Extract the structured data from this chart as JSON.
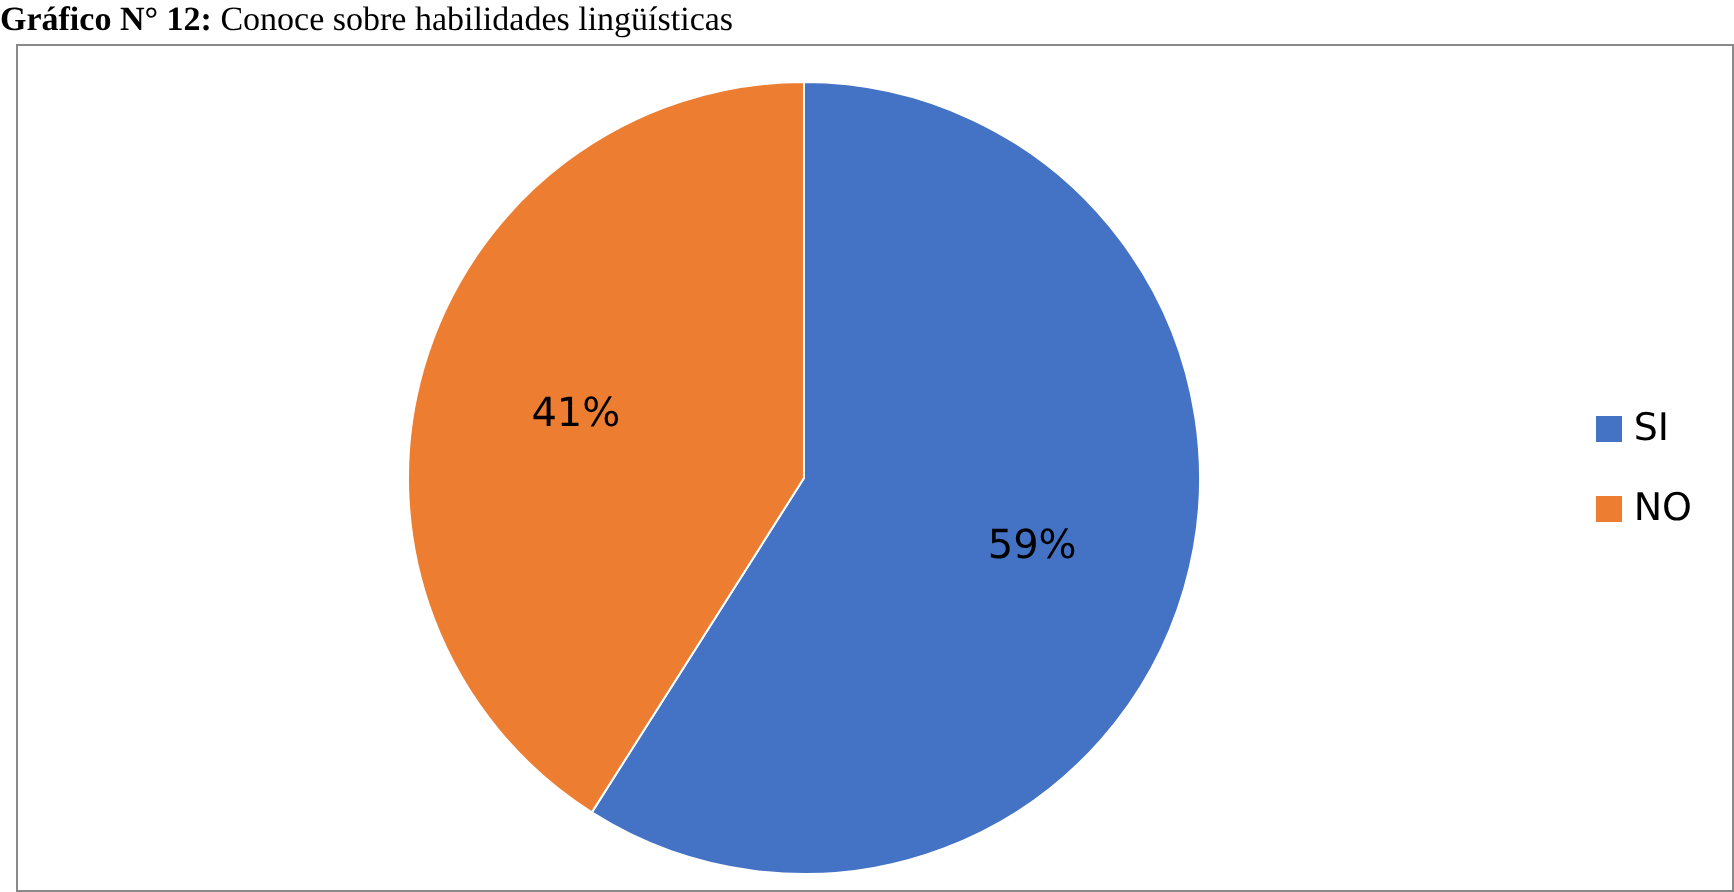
{
  "chart_data": {
    "type": "pie",
    "title": "Gráfico N° 12: Conoce sobre habilidades lingüísticas",
    "categories": [
      "SI",
      "NO"
    ],
    "values": [
      59,
      41
    ],
    "colors": [
      "#4472c4",
      "#ed7d31"
    ],
    "value_labels": [
      "59%",
      "41%"
    ],
    "legend": "right"
  }
}
